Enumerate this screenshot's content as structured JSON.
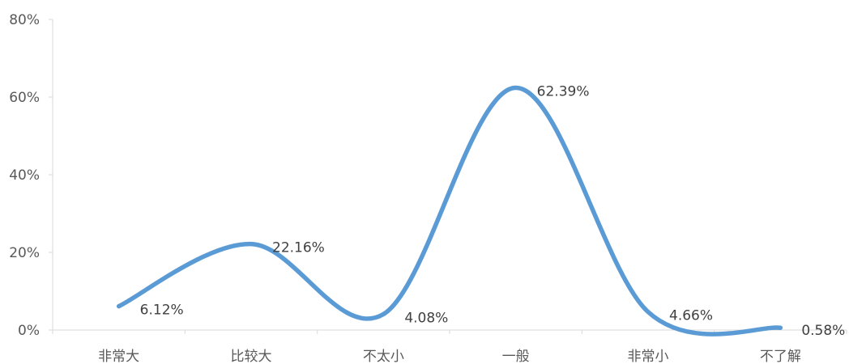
{
  "chart_data": {
    "type": "line",
    "smooth": true,
    "categories": [
      "非常大",
      "比较大",
      "不太小",
      "一般",
      "非常小",
      "不了解"
    ],
    "values": [
      6.12,
      22.16,
      4.08,
      62.39,
      4.66,
      0.58
    ],
    "data_labels": [
      "6.12%",
      "22.16%",
      "4.08%",
      "62.39%",
      "4.66%",
      "0.58%"
    ],
    "y_ticks": [
      0,
      20,
      40,
      60,
      80
    ],
    "y_tick_labels": [
      "0%",
      "20%",
      "40%",
      "60%",
      "80%"
    ],
    "ylim": [
      0,
      80
    ],
    "grid": false,
    "legend": "none",
    "series_color": "#5b9bd5"
  }
}
